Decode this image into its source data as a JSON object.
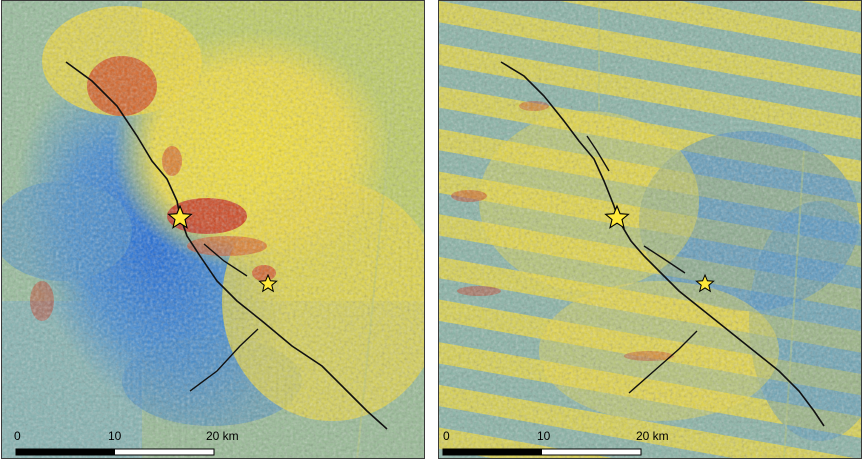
{
  "panels": [
    {
      "id": "left",
      "scale_bar": {
        "labels": [
          "0",
          "10",
          "20 km"
        ]
      }
    },
    {
      "id": "right",
      "scale_bar": {
        "labels": [
          "0",
          "10",
          "20 km"
        ]
      }
    }
  ],
  "legend_colors": {
    "blue": "#2f7fd0",
    "green": "#8fbf7a",
    "yellow": "#f2e23a",
    "red": "#c81818",
    "fault": "#111111",
    "epicenter_star": "#ffe93a"
  }
}
